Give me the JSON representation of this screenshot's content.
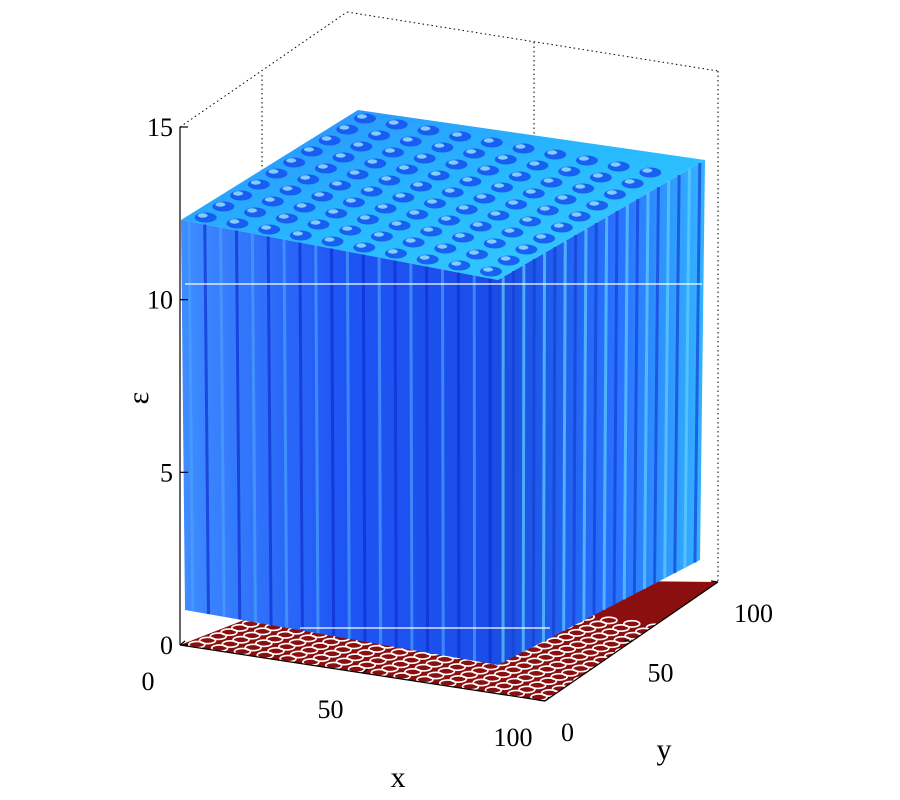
{
  "chart_data": {
    "type": "surface",
    "title": "",
    "xlabel": "x",
    "ylabel": "y",
    "zlabel": "ε",
    "xlim": [
      0,
      100
    ],
    "ylim": [
      0,
      100
    ],
    "zlim": [
      0,
      15
    ],
    "x_ticks": [
      "0",
      "50",
      "100"
    ],
    "y_ticks": [
      "0",
      "50",
      "100"
    ],
    "z_ticks": [
      "0",
      "5",
      "10",
      "15"
    ],
    "x_tick_values": [
      0,
      50,
      100
    ],
    "y_tick_values": [
      0,
      50,
      100
    ],
    "z_tick_values": [
      0,
      5,
      10,
      15
    ],
    "grid": false,
    "box": "dotted",
    "surface": {
      "pattern": "periodic spots",
      "spots_per_side": 10,
      "peak_value": 12.5,
      "trough_value": 1.0,
      "colormap": "jet",
      "dominant_color": "#1a4cff"
    },
    "floor_contour": {
      "z": 0.4,
      "colors": [
        "#8b0f0f",
        "#ffffff"
      ]
    }
  }
}
